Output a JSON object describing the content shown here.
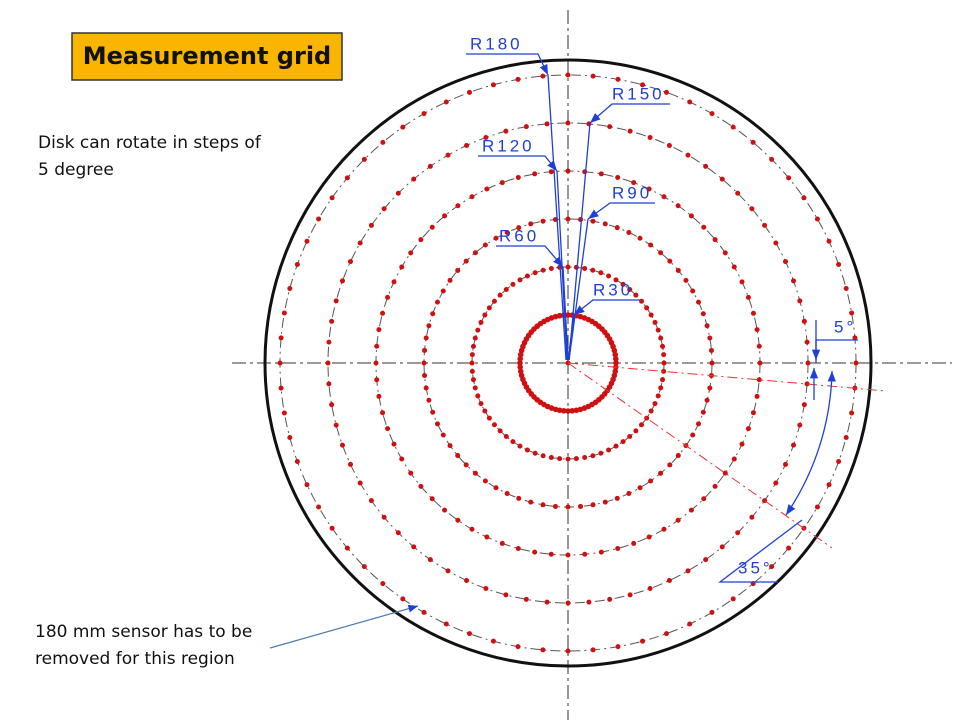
{
  "title": "Measurement grid",
  "rotation_note": [
    "Disk can rotate in steps of",
    "5 degree"
  ],
  "sensor_note": [
    "180 mm sensor has to be",
    "removed for this region"
  ],
  "radius_labels": [
    "R180",
    "R150",
    "R120",
    "R90",
    "R60",
    "R30"
  ],
  "angle_labels": [
    "5°",
    "35°"
  ]
}
